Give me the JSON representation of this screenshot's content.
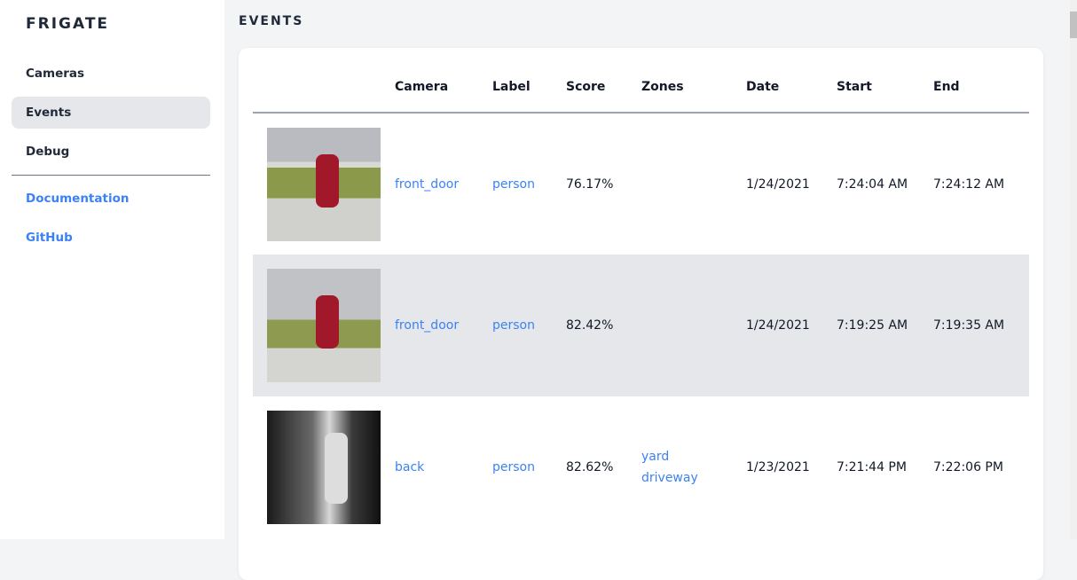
{
  "sidebar": {
    "brand": "FRIGATE",
    "items": [
      {
        "label": "Cameras"
      },
      {
        "label": "Events"
      },
      {
        "label": "Debug"
      }
    ],
    "links": [
      {
        "label": "Documentation"
      },
      {
        "label": "GitHub"
      }
    ]
  },
  "page": {
    "title": "EVENTS"
  },
  "table": {
    "headers": [
      "Camera",
      "Label",
      "Score",
      "Zones",
      "Date",
      "Start",
      "End"
    ],
    "rows": [
      {
        "camera": "front_door",
        "label": "person",
        "score": "76.17%",
        "zones": [
          "",
          ""
        ],
        "date": "1/24/2021",
        "start": "7:24:04 AM",
        "end": "7:24:12 AM"
      },
      {
        "camera": "front_door",
        "label": "person",
        "score": "82.42%",
        "zones": [
          "",
          ""
        ],
        "date": "1/24/2021",
        "start": "7:19:25 AM",
        "end": "7:19:35 AM"
      },
      {
        "camera": "back",
        "label": "person",
        "score": "82.62%",
        "zones": [
          "yard",
          "driveway"
        ],
        "date": "1/23/2021",
        "start": "7:21:44 PM",
        "end": "7:22:06 PM"
      }
    ]
  },
  "colors": {
    "accent": "#3b82f6",
    "active_bg": "#e5e7eb"
  }
}
